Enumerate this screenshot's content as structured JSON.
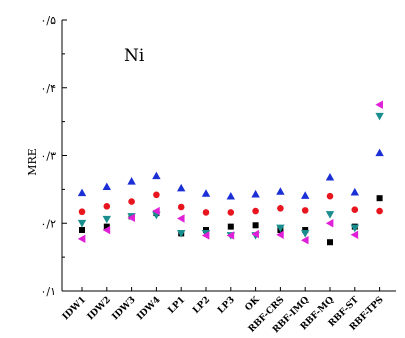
{
  "chart_data": {
    "type": "scatter",
    "title": "Ni",
    "xlabel": "",
    "ylabel": "MRE",
    "categories": [
      "IDW1",
      "IDW2",
      "IDW3",
      "IDW4",
      "LP1",
      "LP2",
      "LP3",
      "OK",
      "RBF-CRS",
      "RBF-IMQ",
      "RBF-MQ",
      "RBF-ST",
      "RBF-TPS"
    ],
    "ylim": [
      0.1,
      0.5
    ],
    "yticks": [
      0.1,
      0.2,
      0.3,
      0.4,
      0.5
    ],
    "ytick_labels": [
      "۰/۱",
      "۰/۲",
      "۰/۳",
      "۰/۴",
      "۰/۵"
    ],
    "grid": false,
    "series": [
      {
        "color": "#000000",
        "marker": "square",
        "values": [
          0.19,
          0.195,
          0.21,
          0.215,
          0.185,
          0.19,
          0.195,
          0.197,
          0.19,
          0.19,
          0.172,
          0.195,
          0.237
        ]
      },
      {
        "color": "#e8141e",
        "marker": "circle",
        "values": [
          0.217,
          0.225,
          0.232,
          0.242,
          0.224,
          0.216,
          0.216,
          0.218,
          0.222,
          0.219,
          0.24,
          0.22,
          0.218
        ]
      },
      {
        "color": "#1a2fd6",
        "marker": "triangle-up",
        "values": [
          0.245,
          0.254,
          0.262,
          0.27,
          0.252,
          0.244,
          0.24,
          0.243,
          0.247,
          0.241,
          0.268,
          0.246,
          0.304
        ]
      },
      {
        "color": "#1a8e8e",
        "marker": "triangle-down",
        "values": [
          0.2,
          0.206,
          0.21,
          0.212,
          0.185,
          0.185,
          0.182,
          0.182,
          0.193,
          0.185,
          0.213,
          0.193,
          0.358
        ]
      },
      {
        "color": "#e020d8",
        "marker": "triangle-left",
        "values": [
          0.177,
          0.19,
          0.208,
          0.218,
          0.207,
          0.182,
          0.182,
          0.184,
          0.183,
          0.175,
          0.2,
          0.183,
          0.375
        ]
      }
    ]
  }
}
